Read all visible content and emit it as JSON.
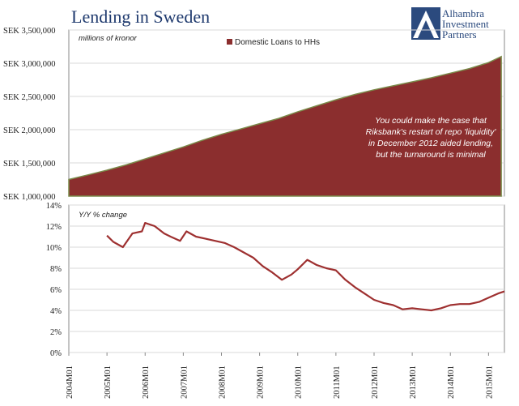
{
  "title": "Lending in Sweden",
  "logo": {
    "lines": [
      "Alhambra",
      "Investment",
      "Partners"
    ],
    "colors": {
      "navy": "#2b4a7e"
    }
  },
  "colors": {
    "area": "#8b2e2e",
    "area_edge": "#7a8a4a",
    "line": "#9e3030",
    "title": "#1f3a6e"
  },
  "chart_data": [
    {
      "type": "area",
      "ylabel": "millions of kronor",
      "ylim": [
        1000000,
        3500000
      ],
      "y_ticks": [
        "SEK 3,500,000",
        "SEK 3,000,000",
        "SEK 2,500,000",
        "SEK 2,000,000",
        "SEK 1,500,000",
        "SEK 1,000,000"
      ],
      "y_tick_values": [
        3500000,
        3000000,
        2500000,
        2000000,
        1500000,
        1000000
      ],
      "legend": {
        "position": "top-center",
        "label": "Domestic Loans to HHs"
      },
      "annotation": [
        "You could make the case that",
        "Riksbank's restart of repo 'liquidity'",
        "in December 2012 aided lending,",
        "but the turnaround is minimal"
      ],
      "series": [
        {
          "name": "Domestic Loans to HHs",
          "x": [
            "2004M01",
            "2004M07",
            "2005M01",
            "2005M07",
            "2006M01",
            "2006M07",
            "2007M01",
            "2007M07",
            "2008M01",
            "2008M07",
            "2009M01",
            "2009M07",
            "2010M01",
            "2010M07",
            "2011M01",
            "2011M07",
            "2012M01",
            "2012M07",
            "2013M01",
            "2013M07",
            "2014M01",
            "2014M07",
            "2015M01",
            "2015M05"
          ],
          "values": [
            1250000,
            1320000,
            1390000,
            1470000,
            1560000,
            1650000,
            1740000,
            1840000,
            1930000,
            2010000,
            2090000,
            2170000,
            2270000,
            2360000,
            2450000,
            2530000,
            2600000,
            2660000,
            2720000,
            2780000,
            2850000,
            2920000,
            3010000,
            3100000
          ]
        }
      ]
    },
    {
      "type": "line",
      "ylabel": "Y/Y % change",
      "ylim": [
        0,
        14
      ],
      "y_ticks": [
        "14%",
        "12%",
        "10%",
        "8%",
        "6%",
        "4%",
        "2%",
        "0%"
      ],
      "y_tick_values": [
        14,
        12,
        10,
        8,
        6,
        4,
        2,
        0
      ],
      "x_ticks": [
        "2004M01",
        "2005M01",
        "2006M01",
        "2007M01",
        "2008M01",
        "2009M01",
        "2010M01",
        "2011M01",
        "2012M01",
        "2013M01",
        "2014M01",
        "2015M01"
      ],
      "xlim": [
        "2004M01",
        "2015M06"
      ],
      "series": [
        {
          "name": "",
          "x": [
            "2005M01",
            "2005M03",
            "2005M06",
            "2005M09",
            "2005M12",
            "2006M01",
            "2006M04",
            "2006M07",
            "2006M09",
            "2006M12",
            "2007M02",
            "2007M05",
            "2007M08",
            "2007M11",
            "2008M02",
            "2008M05",
            "2008M08",
            "2008M11",
            "2009M02",
            "2009M05",
            "2009M08",
            "2009M11",
            "2010M01",
            "2010M04",
            "2010M07",
            "2010M10",
            "2011M01",
            "2011M04",
            "2011M07",
            "2011M10",
            "2012M01",
            "2012M04",
            "2012M07",
            "2012M10",
            "2013M01",
            "2013M04",
            "2013M07",
            "2013M10",
            "2014M01",
            "2014M04",
            "2014M07",
            "2014M10",
            "2015M01",
            "2015M04",
            "2015M06"
          ],
          "values": [
            11.1,
            10.5,
            10.0,
            11.3,
            11.5,
            12.3,
            12.0,
            11.3,
            11.0,
            10.6,
            11.5,
            11.0,
            10.8,
            10.6,
            10.4,
            10.0,
            9.5,
            9.0,
            8.2,
            7.6,
            6.9,
            7.4,
            7.9,
            8.8,
            8.3,
            8.0,
            7.8,
            6.9,
            6.2,
            5.6,
            5.0,
            4.7,
            4.5,
            4.1,
            4.2,
            4.1,
            4.0,
            4.2,
            4.5,
            4.6,
            4.6,
            4.8,
            5.2,
            5.6,
            5.8
          ]
        }
      ]
    }
  ]
}
